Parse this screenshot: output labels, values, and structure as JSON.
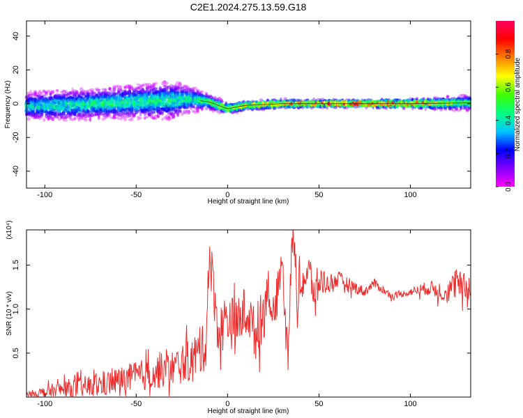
{
  "title": "C2E1.2024.275.13.59.G18",
  "colors": {
    "series": "#ee2b2b",
    "frame": "#000000"
  },
  "chart_data": [
    {
      "type": "heatmap",
      "xlabel": "Height of straight line (km)",
      "ylabel": "Frequency (Hz)",
      "xlim": [
        -110,
        133
      ],
      "ylim": [
        -50,
        49
      ],
      "x_ticks": [
        -100,
        -50,
        0,
        50,
        100
      ],
      "y_ticks": [
        -40,
        -20,
        0,
        20,
        40
      ],
      "colorbar": {
        "label": "Normalized spectral amplitude",
        "range": [
          0,
          1
        ],
        "ticks": [
          "0.0",
          "0.2",
          "0.4",
          "0.6",
          "0.8"
        ],
        "colormap": [
          "#ff00ff",
          "#8000ff",
          "#0000ff",
          "#00c8ff",
          "#00ff80",
          "#40ff00",
          "#ffff00",
          "#ff8000",
          "#ff0000",
          "#ff0060"
        ]
      },
      "ridge": {
        "x": [
          -110,
          -90,
          -70,
          -50,
          -30,
          -20,
          -10,
          0,
          10,
          30,
          50,
          70,
          100,
          133
        ],
        "y": [
          -1.5,
          -1,
          0,
          1,
          2,
          2.5,
          1,
          -3,
          -1,
          0,
          0,
          0,
          0,
          0.5
        ],
        "amplitude": [
          0.45,
          0.45,
          0.5,
          0.5,
          0.5,
          0.5,
          0.6,
          0.75,
          0.75,
          0.8,
          0.9,
          0.95,
          0.95,
          0.55
        ],
        "spread_hz": [
          8,
          9,
          9,
          10,
          11,
          7,
          4,
          3,
          2.5,
          2.5,
          2,
          2,
          2.5,
          4
        ]
      }
    },
    {
      "type": "line",
      "xlabel": "Height of straight line (km)",
      "ylabel": "SNR (10 * v/v)",
      "y_multiplier": "(x10⁴)",
      "xlim": [
        -110,
        133
      ],
      "ylim": [
        0,
        1.9
      ],
      "x_ticks": [
        -100,
        -50,
        0,
        50,
        100
      ],
      "y_ticks": [
        0.5,
        1.0,
        1.5
      ],
      "y_tick_labels": [
        "0.5",
        "1.0",
        "1.5"
      ],
      "series": [
        {
          "x": [
            -110,
            -100,
            -90,
            -80,
            -70,
            -60,
            -50,
            -40,
            -30,
            -20,
            -12,
            -10,
            -5,
            0,
            5,
            10,
            15,
            20,
            22,
            25,
            28,
            30,
            33,
            35,
            36,
            38,
            40,
            45,
            48,
            50,
            55,
            60,
            65,
            70,
            75,
            80,
            90,
            100,
            110,
            120,
            125,
            130,
            133
          ],
          "y": [
            0.03,
            0.06,
            0.1,
            0.12,
            0.15,
            0.2,
            0.25,
            0.3,
            0.35,
            0.45,
            0.6,
            1.7,
            0.75,
            0.95,
            0.8,
            1.05,
            0.75,
            1.0,
            1.35,
            0.8,
            1.4,
            1.55,
            0.5,
            1.65,
            1.9,
            1.15,
            1.3,
            1.45,
            1.1,
            1.35,
            1.3,
            1.35,
            1.3,
            1.25,
            1.2,
            1.3,
            1.15,
            1.2,
            1.25,
            1.2,
            1.3,
            1.25,
            1.28
          ],
          "noise": [
            0.05,
            0.1,
            0.15,
            0.18,
            0.2,
            0.22,
            0.25,
            0.28,
            0.3,
            0.35,
            0.4,
            0.4,
            0.4,
            0.45,
            0.45,
            0.4,
            0.4,
            0.45,
            0.3,
            0.3,
            0.3,
            0.3,
            0.3,
            0.25,
            0.2,
            0.3,
            0.3,
            0.3,
            0.3,
            0.3,
            0.15,
            0.15,
            0.12,
            0.1,
            0.08,
            0.08,
            0.05,
            0.06,
            0.12,
            0.18,
            0.25,
            0.25,
            0.25
          ]
        }
      ]
    }
  ]
}
